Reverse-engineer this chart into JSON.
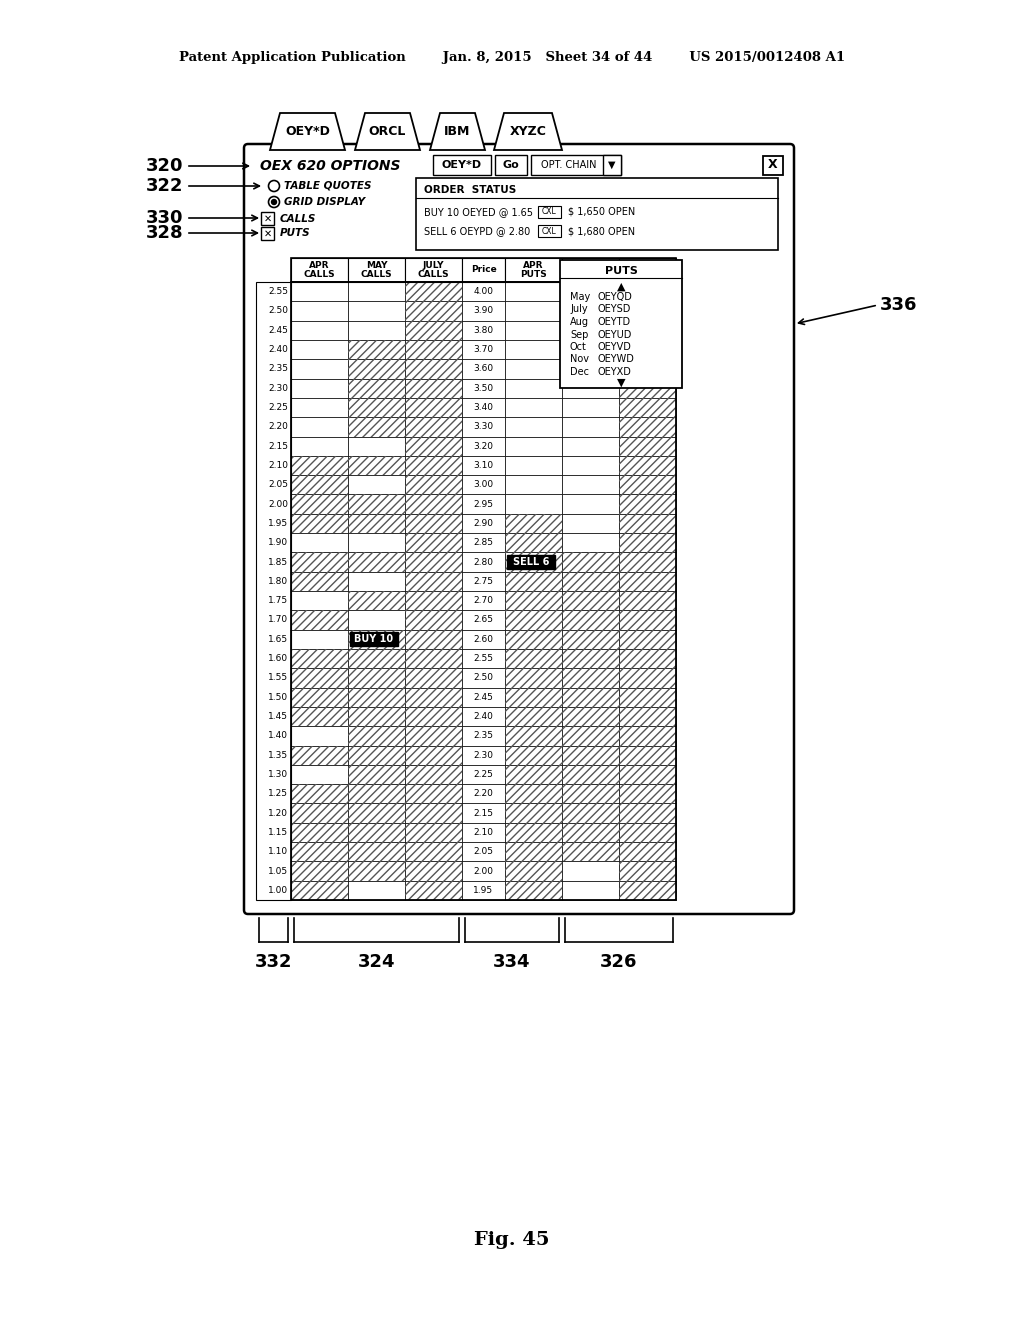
{
  "patent_header": "Patent Application Publication        Jan. 8, 2015   Sheet 34 of 44        US 2015/0012408 A1",
  "fig_label": "Fig. 45",
  "tabs": [
    "OEY*D",
    "ORCL",
    "IBM",
    "XYZC"
  ],
  "title": "OEX 620 OPTIONS",
  "ticker_box": "OEY*D",
  "go_btn": "Go",
  "opt_chain_btn": "OPT. CHAIN",
  "radio_options": [
    "TABLE QUOTES",
    "GRID DISPLAY"
  ],
  "selected_radio": 1,
  "checkboxes": [
    "CALLS",
    "PUTS"
  ],
  "checkbox_refs": [
    "330",
    "328"
  ],
  "left_values": [
    2.55,
    2.5,
    2.45,
    2.4,
    2.35,
    2.3,
    2.25,
    2.2,
    2.15,
    2.1,
    2.05,
    2.0,
    1.95,
    1.9,
    1.85,
    1.8,
    1.75,
    1.7,
    1.65,
    1.6,
    1.55,
    1.5,
    1.45,
    1.4,
    1.35,
    1.3,
    1.25,
    1.2,
    1.15,
    1.1,
    1.05,
    1.0
  ],
  "price_values": [
    4.0,
    3.9,
    3.8,
    3.7,
    3.6,
    3.5,
    3.4,
    3.3,
    3.2,
    3.1,
    3.0,
    2.95,
    2.9,
    2.85,
    2.8,
    2.75,
    2.7,
    2.65,
    2.6,
    2.55,
    2.5,
    2.45,
    2.4,
    2.35,
    2.3,
    2.25,
    2.2,
    2.15,
    2.1,
    2.05,
    2.0,
    1.95
  ],
  "buy10_row": 18,
  "sell6_row": 14,
  "dropdown_items": [
    [
      "May",
      "OEYQD"
    ],
    [
      "July",
      "OEYSD"
    ],
    [
      "Aug",
      "OEYTD"
    ],
    [
      "Sep",
      "OEYUD"
    ],
    [
      "Oct",
      "OEYVD"
    ],
    [
      "Nov",
      "OEYWD"
    ],
    [
      "Dec",
      "OEYXD"
    ]
  ],
  "hatch_apr_calls": [
    9,
    10,
    11,
    12,
    14,
    15,
    17,
    19,
    20,
    21,
    22,
    24,
    26,
    27,
    28,
    29,
    30,
    31
  ],
  "hatch_may_calls": [
    3,
    4,
    5,
    6,
    7,
    9,
    11,
    12,
    14,
    16,
    18,
    19,
    20,
    21,
    22,
    23,
    24,
    25,
    26,
    27,
    28,
    29,
    30
  ],
  "hatch_july_calls": [
    0,
    1,
    2,
    3,
    4,
    5,
    6,
    7,
    8,
    9,
    10,
    11,
    12,
    13,
    14,
    15,
    16,
    17,
    18,
    19,
    20,
    21,
    22,
    23,
    24,
    25,
    26,
    27,
    28,
    29,
    30,
    31
  ],
  "hatch_apr_puts": [
    12,
    13,
    14,
    15,
    16,
    17,
    18,
    19,
    20,
    21,
    22,
    23,
    24,
    25,
    26,
    27,
    28,
    29,
    30,
    31
  ],
  "hatch_may_puts": [
    14,
    15,
    16,
    17,
    18,
    19,
    20,
    21,
    22,
    23,
    24,
    25,
    26,
    27,
    28,
    29
  ],
  "hatch_july_puts": [
    0,
    1,
    2,
    3,
    4,
    5,
    6,
    7,
    8,
    9,
    10,
    11,
    12,
    13,
    14,
    15,
    16,
    17,
    18,
    19,
    20,
    21,
    22,
    23,
    24,
    25,
    26,
    27,
    28,
    29,
    30,
    31
  ]
}
